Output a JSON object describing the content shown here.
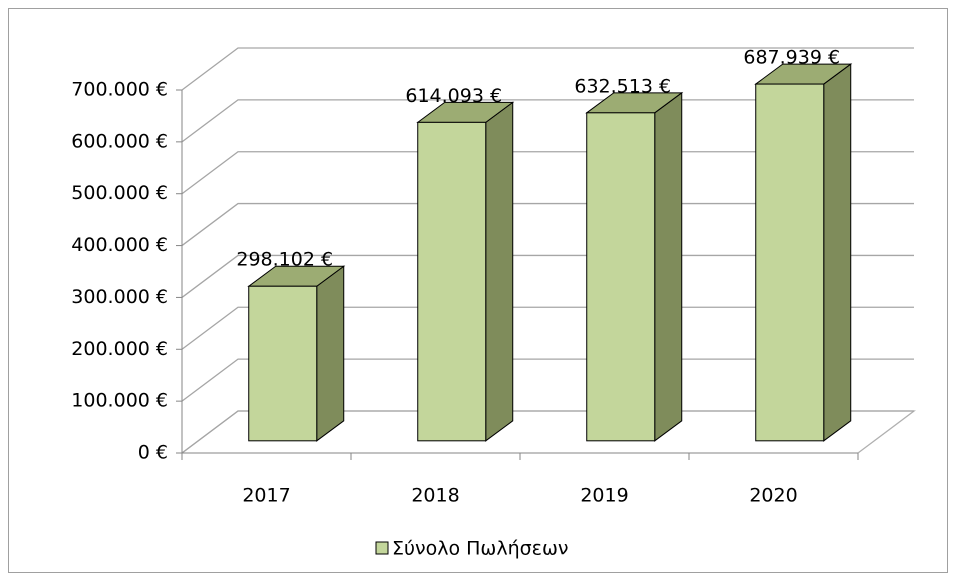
{
  "chart_data": {
    "type": "bar3d",
    "categories": [
      "2017",
      "2018",
      "2019",
      "2020"
    ],
    "series": [
      {
        "name": "Σύνολο Πωλήσεων",
        "color": "#c3d69b",
        "values": [
          298102,
          614093,
          632513,
          687939
        ],
        "value_labels": [
          "298.102 €",
          "614.093 €",
          "632.513 €",
          "687.939 €"
        ]
      }
    ],
    "ylim": [
      0,
      700000
    ],
    "yticks": [
      {
        "value": 0,
        "label": "0 €"
      },
      {
        "value": 100000,
        "label": "100.000 €"
      },
      {
        "value": 200000,
        "label": "200.000 €"
      },
      {
        "value": 300000,
        "label": "300.000 €"
      },
      {
        "value": 400000,
        "label": "400.000 €"
      },
      {
        "value": 500000,
        "label": "500.000 €"
      },
      {
        "value": 600000,
        "label": "600.000 €"
      },
      {
        "value": 700000,
        "label": "700.000 €"
      }
    ],
    "grid": true,
    "legend": "bottom"
  }
}
